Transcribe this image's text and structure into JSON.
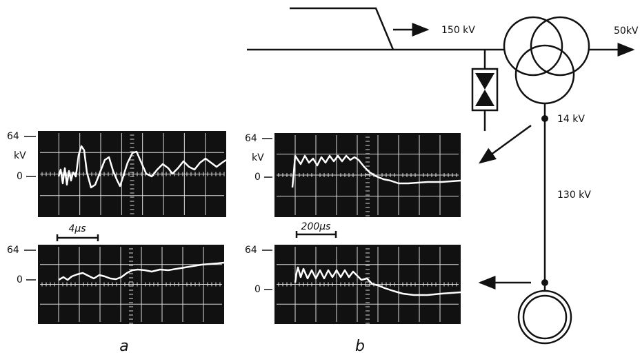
{
  "scopes": [
    {
      "top_label": "64",
      "unit": "kV",
      "zero_label": "0"
    },
    {
      "top_label": "64",
      "zero_label": "0"
    },
    {
      "top_label": "64",
      "unit": "kV",
      "zero_label": "0"
    },
    {
      "top_label": "64",
      "zero_label": "0"
    }
  ],
  "time_scales": [
    "4µs",
    "200µs"
  ],
  "panel_labels": [
    "a",
    "b"
  ],
  "diagram_labels": {
    "incoming": "150 kV",
    "outgoing": "50kV",
    "tertiary": "14 kV",
    "cable": "130 kV"
  }
}
